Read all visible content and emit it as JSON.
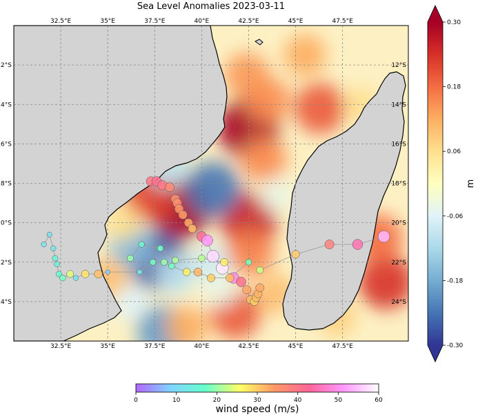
{
  "title": "Sea Level Anomalies 2023-03-11",
  "map": {
    "lon_range": [
      30.0,
      51.0
    ],
    "lat_range": [
      -26.0,
      -10.0
    ],
    "lon_ticks": [
      "32.5°E",
      "35°E",
      "37.5°E",
      "40°E",
      "42.5°E",
      "45°E",
      "47.5°E"
    ],
    "lon_tick_values": [
      32.5,
      35.0,
      37.5,
      40.0,
      42.5,
      45.0,
      47.5
    ],
    "lat_ticks": [
      "12°S",
      "14°S",
      "16°S",
      "18°S",
      "20°S",
      "22°S",
      "24°S"
    ],
    "lat_tick_values": [
      -12,
      -14,
      -16,
      -18,
      -20,
      -22,
      -24
    ],
    "land_color": "#d3d3d3",
    "grid": true
  },
  "anomaly_colorbar": {
    "label": "m",
    "tick_labels": [
      "0.30",
      "0.18",
      "0.06",
      "-0.06",
      "-0.18",
      "-0.30"
    ],
    "tick_values": [
      0.3,
      0.18,
      0.06,
      -0.06,
      -0.18,
      -0.3
    ],
    "range": [
      -0.3,
      0.3
    ],
    "extend": "both",
    "colormap": "RdYlBu_r",
    "stops": [
      "#313695",
      "#4575b4",
      "#74add1",
      "#abd9e9",
      "#e0f3f8",
      "#ffffbf",
      "#fee090",
      "#fdae61",
      "#f46d43",
      "#d73027",
      "#a50026"
    ]
  },
  "wind_colorbar": {
    "label": "wind speed (m/s)",
    "tick_labels": [
      "0",
      "10",
      "20",
      "30",
      "40",
      "50",
      "60"
    ],
    "tick_values": [
      0,
      10,
      20,
      30,
      40,
      50,
      60
    ],
    "range": [
      0,
      60
    ],
    "stops": [
      "#b366ff",
      "#80d4ff",
      "#66ffcc",
      "#ffff66",
      "#ff9966",
      "#ff6699",
      "#ff99ff",
      "#ffffff"
    ]
  },
  "anomaly_blobs": [
    {
      "lon": 42.5,
      "lat": -15.2,
      "value": 0.3
    },
    {
      "lon": 42.4,
      "lat": -12.5,
      "value": 0.14
    },
    {
      "lon": 45.5,
      "lat": -11.5,
      "value": 0.12
    },
    {
      "lon": 46.3,
      "lat": -14.2,
      "value": 0.2
    },
    {
      "lon": 48.5,
      "lat": -14.0,
      "value": 0.06
    },
    {
      "lon": 43.5,
      "lat": -13.8,
      "value": 0.15
    },
    {
      "lon": 38.9,
      "lat": -19.3,
      "value": 0.3
    },
    {
      "lon": 37.2,
      "lat": -18.6,
      "value": 0.22
    },
    {
      "lon": 42.5,
      "lat": -19.9,
      "value": 0.26
    },
    {
      "lon": 40.6,
      "lat": -18.3,
      "value": -0.24
    },
    {
      "lon": 38.2,
      "lat": -17.2,
      "value": -0.1
    },
    {
      "lon": 37.6,
      "lat": -21.9,
      "value": -0.28
    },
    {
      "lon": 36.3,
      "lat": -21.2,
      "value": -0.16
    },
    {
      "lon": 40.5,
      "lat": -22.0,
      "value": -0.08
    },
    {
      "lon": 38.6,
      "lat": -22.6,
      "value": -0.1
    },
    {
      "lon": 36.2,
      "lat": -24.0,
      "value": -0.06
    },
    {
      "lon": 41.8,
      "lat": -24.6,
      "value": 0.2
    },
    {
      "lon": 43.9,
      "lat": -23.6,
      "value": 0.1
    },
    {
      "lon": 37.9,
      "lat": -25.5,
      "value": -0.2
    },
    {
      "lon": 39.2,
      "lat": -25.3,
      "value": 0.12
    },
    {
      "lon": 43.3,
      "lat": -16.8,
      "value": 0.15
    },
    {
      "lon": 44.0,
      "lat": -18.6,
      "value": -0.04
    },
    {
      "lon": 42.6,
      "lat": -21.5,
      "value": 0.16
    },
    {
      "lon": 41.0,
      "lat": -23.4,
      "value": -0.04
    },
    {
      "lon": 49.8,
      "lat": -23.0,
      "value": 0.24
    },
    {
      "lon": 49.4,
      "lat": -20.8,
      "value": 0.18
    },
    {
      "lon": 47.2,
      "lat": -24.8,
      "value": 0.08
    },
    {
      "lon": 35.0,
      "lat": -22.8,
      "value": 0.1
    },
    {
      "lon": 35.8,
      "lat": -20.0,
      "value": 0.06
    }
  ],
  "storm_tracks": [
    {
      "name": "",
      "points": [
        {
          "lon": 37.3,
          "lat": -17.9,
          "wind": 40
        },
        {
          "lon": 37.6,
          "lat": -17.9,
          "wind": 41
        },
        {
          "lon": 37.9,
          "lat": -18.1,
          "wind": 40
        },
        {
          "lon": 38.3,
          "lat": -18.2,
          "wind": 37
        },
        {
          "lon": 38.6,
          "lat": -18.8,
          "wind": 36
        },
        {
          "lon": 38.7,
          "lat": -19.0,
          "wind": 36
        },
        {
          "lon": 38.8,
          "lat": -19.3,
          "wind": 35
        },
        {
          "lon": 39.0,
          "lat": -19.6,
          "wind": 34
        },
        {
          "lon": 39.3,
          "lat": -20.0,
          "wind": 33
        },
        {
          "lon": 39.5,
          "lat": -20.3,
          "wind": 31
        },
        {
          "lon": 40.0,
          "lat": -20.7,
          "wind": 42
        },
        {
          "lon": 40.3,
          "lat": -20.9,
          "wind": 51
        },
        {
          "lon": 40.6,
          "lat": -21.7,
          "wind": 57
        },
        {
          "lon": 41.1,
          "lat": -22.3,
          "wind": 58
        },
        {
          "lon": 41.7,
          "lat": -22.8,
          "wind": 49
        },
        {
          "lon": 42.1,
          "lat": -23.0,
          "wind": 41
        },
        {
          "lon": 42.4,
          "lat": -23.4,
          "wind": 33
        },
        {
          "lon": 42.6,
          "lat": -23.9,
          "wind": 31
        },
        {
          "lon": 42.8,
          "lat": -24.0,
          "wind": 30
        },
        {
          "lon": 42.9,
          "lat": -23.8,
          "wind": 31
        },
        {
          "lon": 43.0,
          "lat": -23.6,
          "wind": 32
        },
        {
          "lon": 43.1,
          "lat": -23.3,
          "wind": 33
        }
      ]
    },
    {
      "name": "",
      "points": [
        {
          "lon": 31.6,
          "lat": -21.1,
          "wind": 12
        },
        {
          "lon": 31.9,
          "lat": -20.6,
          "wind": 11
        },
        {
          "lon": 32.1,
          "lat": -21.3,
          "wind": 13
        },
        {
          "lon": 32.2,
          "lat": -21.8,
          "wind": 15
        },
        {
          "lon": 32.3,
          "lat": -22.1,
          "wind": 14
        },
        {
          "lon": 32.4,
          "lat": -22.6,
          "wind": 16
        },
        {
          "lon": 32.6,
          "lat": -22.8,
          "wind": 18
        },
        {
          "lon": 33.0,
          "lat": -22.6,
          "wind": 24
        },
        {
          "lon": 33.3,
          "lat": -22.8,
          "wind": 12
        },
        {
          "lon": 33.8,
          "lat": -22.6,
          "wind": 28
        },
        {
          "lon": 34.5,
          "lat": -22.6,
          "wind": 31
        },
        {
          "lon": 35.0,
          "lat": -22.5,
          "wind": 8
        },
        {
          "lon": 36.7,
          "lat": -22.5,
          "wind": 13
        },
        {
          "lon": 37.4,
          "lat": -22.0,
          "wind": 18
        },
        {
          "lon": 38.0,
          "lat": -22.0,
          "wind": 20
        },
        {
          "lon": 38.4,
          "lat": -22.2,
          "wind": 18
        },
        {
          "lon": 39.2,
          "lat": -22.5,
          "wind": 27
        },
        {
          "lon": 39.8,
          "lat": -22.5,
          "wind": 32
        },
        {
          "lon": 40.5,
          "lat": -22.8,
          "wind": 30
        },
        {
          "lon": 41.5,
          "lat": -22.8,
          "wind": 31
        },
        {
          "lon": 42.5,
          "lat": -22.0,
          "wind": 18
        }
      ]
    },
    {
      "name": "",
      "points": [
        {
          "lon": 43.1,
          "lat": -22.4,
          "wind": 23
        },
        {
          "lon": 45.0,
          "lat": -21.6,
          "wind": 30
        },
        {
          "lon": 46.8,
          "lat": -21.1,
          "wind": 38
        },
        {
          "lon": 48.3,
          "lat": -21.1,
          "wind": 45
        },
        {
          "lon": 49.7,
          "lat": -20.7,
          "wind": 54
        }
      ]
    },
    {
      "name": "",
      "points": [
        {
          "lon": 36.2,
          "lat": -21.8,
          "wind": 20
        },
        {
          "lon": 36.8,
          "lat": -21.1,
          "wind": 16
        },
        {
          "lon": 37.8,
          "lat": -21.3,
          "wind": 18
        },
        {
          "lon": 38.6,
          "lat": -21.9,
          "wind": 21
        },
        {
          "lon": 40.0,
          "lat": -21.8,
          "wind": 22
        },
        {
          "lon": 41.2,
          "lat": -22.0,
          "wind": 27
        }
      ]
    }
  ]
}
